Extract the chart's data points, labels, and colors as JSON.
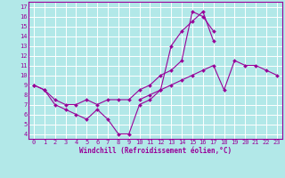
{
  "title": "",
  "xlabel": "Windchill (Refroidissement éolien,°C)",
  "bg_color": "#b2e8e8",
  "grid_color": "#ffffff",
  "line_color": "#990099",
  "xlim": [
    -0.5,
    23.5
  ],
  "ylim": [
    3.5,
    17.5
  ],
  "yticks": [
    4,
    5,
    6,
    7,
    8,
    9,
    10,
    11,
    12,
    13,
    14,
    15,
    16,
    17
  ],
  "xticks": [
    0,
    1,
    2,
    3,
    4,
    5,
    6,
    7,
    8,
    9,
    10,
    11,
    12,
    13,
    14,
    15,
    16,
    17,
    18,
    19,
    20,
    21,
    22,
    23
  ],
  "curve1_x": [
    0,
    1,
    2,
    3,
    4,
    5,
    6,
    7,
    8,
    9,
    10,
    11,
    12,
    13,
    14,
    15,
    16,
    17
  ],
  "curve1_y": [
    9.0,
    8.5,
    7.0,
    6.5,
    6.0,
    5.5,
    6.5,
    5.5,
    4.0,
    4.0,
    7.0,
    7.5,
    8.5,
    13.0,
    14.5,
    15.5,
    16.5,
    13.5
  ],
  "curve2_x": [
    0,
    1,
    2,
    3,
    4,
    5,
    6,
    7,
    8,
    9,
    10,
    11,
    12,
    13,
    14,
    15,
    16,
    17
  ],
  "curve2_y": [
    9.0,
    8.5,
    7.5,
    7.0,
    7.0,
    7.5,
    7.0,
    7.5,
    7.5,
    7.5,
    8.5,
    9.0,
    10.0,
    10.5,
    11.5,
    16.5,
    16.0,
    14.5
  ],
  "curve3_x": [
    10,
    11,
    12,
    13,
    14,
    15,
    16,
    17,
    18,
    19,
    20,
    21,
    22,
    23
  ],
  "curve3_y": [
    7.5,
    8.0,
    8.5,
    9.0,
    9.5,
    10.0,
    10.5,
    11.0,
    8.5,
    11.5,
    11.0,
    11.0,
    10.5,
    10.0
  ],
  "xlabel_fontsize": 5.5,
  "tick_fontsize": 5.0
}
